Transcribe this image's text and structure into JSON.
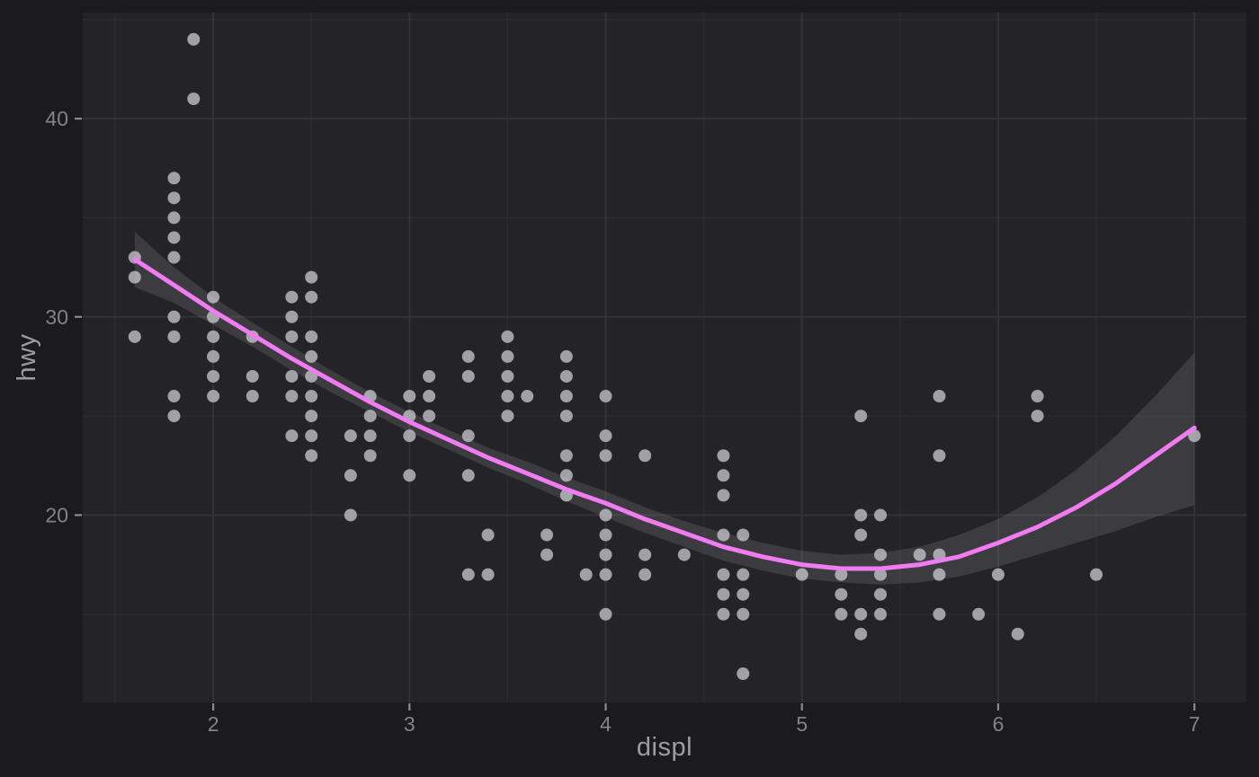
{
  "figure": {
    "colors": {
      "background": "#1b1b1d",
      "panel": "#242428",
      "grid_major": "#33333a",
      "grid_minor": "#2b2b30",
      "tick_mark": "#8b8b90",
      "tick_label": "#82828a",
      "axis_title": "#9c9ca2",
      "point": "#ababb1",
      "smooth_line": "#f17cf2",
      "ribbon": "rgba(205,205,215,0.14)"
    }
  },
  "chart_data": {
    "type": "scatter",
    "title": "",
    "xlabel": "displ",
    "ylabel": "hwy",
    "xlim": [
      1.335,
      7.265
    ],
    "ylim": [
      10.55,
      45.35
    ],
    "grid": "on",
    "x_ticks": [
      2,
      3,
      4,
      5,
      6,
      7
    ],
    "x_minor_ticks": [
      1.5,
      2.5,
      3.5,
      4.5,
      5.5,
      6.5
    ],
    "y_ticks": [
      20,
      30,
      40
    ],
    "y_minor_ticks": [
      15,
      25,
      35,
      45
    ],
    "points": [
      [
        1.6,
        33
      ],
      [
        1.6,
        32
      ],
      [
        1.6,
        29
      ],
      [
        1.8,
        37
      ],
      [
        1.8,
        36
      ],
      [
        1.8,
        35
      ],
      [
        1.8,
        34
      ],
      [
        1.8,
        33
      ],
      [
        1.8,
        30
      ],
      [
        1.8,
        29
      ],
      [
        1.8,
        26
      ],
      [
        1.8,
        25
      ],
      [
        1.9,
        44
      ],
      [
        1.9,
        41
      ],
      [
        2.0,
        31
      ],
      [
        2.0,
        30
      ],
      [
        2.0,
        29
      ],
      [
        2.0,
        28
      ],
      [
        2.0,
        27
      ],
      [
        2.0,
        26
      ],
      [
        2.2,
        29
      ],
      [
        2.2,
        27
      ],
      [
        2.2,
        26
      ],
      [
        2.4,
        31
      ],
      [
        2.4,
        30
      ],
      [
        2.4,
        29
      ],
      [
        2.4,
        27
      ],
      [
        2.4,
        26
      ],
      [
        2.4,
        24
      ],
      [
        2.5,
        32
      ],
      [
        2.5,
        31
      ],
      [
        2.5,
        29
      ],
      [
        2.5,
        28
      ],
      [
        2.5,
        27
      ],
      [
        2.5,
        26
      ],
      [
        2.5,
        25
      ],
      [
        2.5,
        24
      ],
      [
        2.5,
        23
      ],
      [
        2.7,
        24
      ],
      [
        2.7,
        22
      ],
      [
        2.7,
        20
      ],
      [
        2.8,
        26
      ],
      [
        2.8,
        25
      ],
      [
        2.8,
        24
      ],
      [
        2.8,
        23
      ],
      [
        3.0,
        26
      ],
      [
        3.0,
        25
      ],
      [
        3.0,
        24
      ],
      [
        3.0,
        22
      ],
      [
        3.1,
        27
      ],
      [
        3.1,
        26
      ],
      [
        3.1,
        25
      ],
      [
        3.3,
        28
      ],
      [
        3.3,
        27
      ],
      [
        3.3,
        24
      ],
      [
        3.3,
        22
      ],
      [
        3.3,
        17
      ],
      [
        3.4,
        19
      ],
      [
        3.4,
        17
      ],
      [
        3.5,
        29
      ],
      [
        3.5,
        28
      ],
      [
        3.5,
        27
      ],
      [
        3.5,
        26
      ],
      [
        3.5,
        25
      ],
      [
        3.6,
        26
      ],
      [
        3.7,
        19
      ],
      [
        3.7,
        18
      ],
      [
        3.8,
        28
      ],
      [
        3.8,
        27
      ],
      [
        3.8,
        26
      ],
      [
        3.8,
        25
      ],
      [
        3.8,
        23
      ],
      [
        3.8,
        22
      ],
      [
        3.8,
        21
      ],
      [
        3.9,
        17
      ],
      [
        4.0,
        26
      ],
      [
        4.0,
        24
      ],
      [
        4.0,
        23
      ],
      [
        4.0,
        20
      ],
      [
        4.0,
        19
      ],
      [
        4.0,
        18
      ],
      [
        4.0,
        17
      ],
      [
        4.0,
        15
      ],
      [
        4.2,
        23
      ],
      [
        4.2,
        18
      ],
      [
        4.2,
        17
      ],
      [
        4.4,
        18
      ],
      [
        4.6,
        23
      ],
      [
        4.6,
        22
      ],
      [
        4.6,
        21
      ],
      [
        4.6,
        19
      ],
      [
        4.6,
        17
      ],
      [
        4.6,
        16
      ],
      [
        4.6,
        15
      ],
      [
        4.7,
        19
      ],
      [
        4.7,
        17
      ],
      [
        4.7,
        16
      ],
      [
        4.7,
        15
      ],
      [
        4.7,
        12
      ],
      [
        5.0,
        17
      ],
      [
        5.2,
        17
      ],
      [
        5.2,
        16
      ],
      [
        5.2,
        15
      ],
      [
        5.3,
        25
      ],
      [
        5.3,
        20
      ],
      [
        5.3,
        19
      ],
      [
        5.3,
        15
      ],
      [
        5.3,
        14
      ],
      [
        5.4,
        20
      ],
      [
        5.4,
        18
      ],
      [
        5.4,
        17
      ],
      [
        5.4,
        16
      ],
      [
        5.4,
        15
      ],
      [
        5.6,
        18
      ],
      [
        5.7,
        26
      ],
      [
        5.7,
        23
      ],
      [
        5.7,
        18
      ],
      [
        5.7,
        17
      ],
      [
        5.7,
        15
      ],
      [
        5.9,
        15
      ],
      [
        6.0,
        17
      ],
      [
        6.1,
        14
      ],
      [
        6.2,
        26
      ],
      [
        6.2,
        25
      ],
      [
        6.5,
        17
      ],
      [
        7.0,
        24
      ]
    ],
    "smooth": {
      "x": [
        1.6,
        1.8,
        2.0,
        2.2,
        2.4,
        2.6,
        2.8,
        3.0,
        3.2,
        3.4,
        3.6,
        3.8,
        4.0,
        4.2,
        4.4,
        4.6,
        4.8,
        5.0,
        5.2,
        5.4,
        5.6,
        5.8,
        6.0,
        6.2,
        6.4,
        6.6,
        6.8,
        7.0
      ],
      "y": [
        32.9,
        31.6,
        30.3,
        29.1,
        27.9,
        26.8,
        25.7,
        24.7,
        23.8,
        22.9,
        22.1,
        21.3,
        20.6,
        19.8,
        19.1,
        18.4,
        17.9,
        17.5,
        17.3,
        17.3,
        17.5,
        17.9,
        18.6,
        19.4,
        20.4,
        21.6,
        23.0,
        24.4
      ],
      "upper": [
        34.3,
        32.5,
        31.0,
        29.7,
        28.5,
        27.3,
        26.2,
        25.2,
        24.3,
        23.4,
        22.7,
        21.9,
        21.2,
        20.4,
        19.7,
        19.1,
        18.6,
        18.2,
        18.0,
        18.1,
        18.4,
        19.0,
        19.8,
        20.9,
        22.3,
        24.0,
        26.0,
        28.2
      ],
      "lower": [
        31.5,
        30.7,
        29.6,
        28.5,
        27.3,
        26.2,
        25.2,
        24.2,
        23.3,
        22.4,
        21.6,
        20.7,
        19.9,
        19.1,
        18.4,
        17.7,
        17.2,
        16.8,
        16.6,
        16.5,
        16.6,
        16.9,
        17.4,
        18.0,
        18.6,
        19.2,
        19.9,
        20.5
      ]
    }
  }
}
